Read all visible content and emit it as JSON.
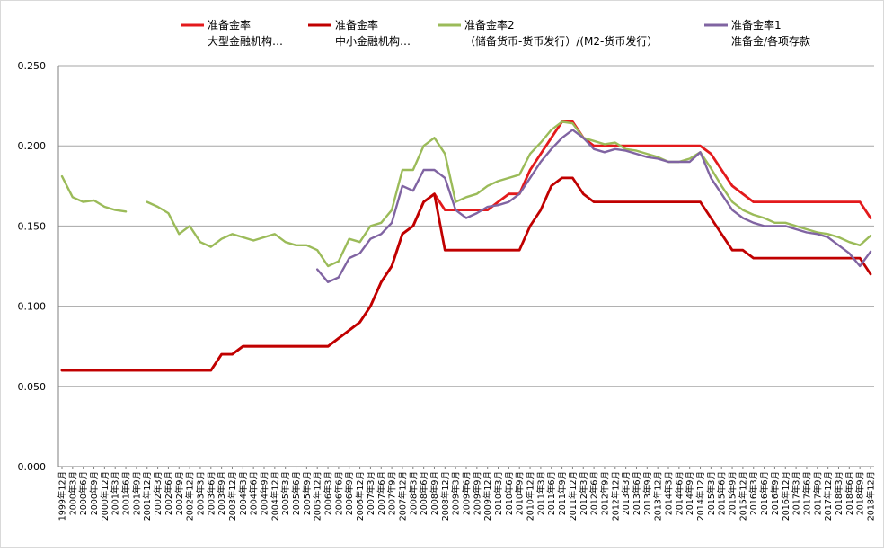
{
  "chart_data": {
    "type": "line",
    "title": "",
    "xlabel": "",
    "ylabel": "",
    "ylim": [
      0,
      0.25
    ],
    "yticks": [
      "0.000",
      "0.050",
      "0.100",
      "0.150",
      "0.200",
      "0.250"
    ],
    "grid": "horizontal",
    "legend_position": "top",
    "x_labels": [
      "1999年12月",
      "2000年3月",
      "2000年6月",
      "2000年9月",
      "2000年12月",
      "2001年3月",
      "2001年6月",
      "2001年9月",
      "2001年12月",
      "2002年3月",
      "2002年6月",
      "2002年9月",
      "2002年12月",
      "2003年3月",
      "2003年6月",
      "2003年9月",
      "2003年12月",
      "2004年3月",
      "2004年6月",
      "2004年9月",
      "2004年12月",
      "2005年3月",
      "2005年6月",
      "2005年9月",
      "2005年12月",
      "2006年3月",
      "2006年6月",
      "2006年9月",
      "2006年12月",
      "2007年3月",
      "2007年6月",
      "2007年9月",
      "2007年12月",
      "2008年3月",
      "2008年6月",
      "2008年9月",
      "2008年12月",
      "2009年3月",
      "2009年6月",
      "2009年9月",
      "2009年12月",
      "2010年3月",
      "2010年6月",
      "2010年9月",
      "2010年12月",
      "2011年3月",
      "2011年6月",
      "2011年9月",
      "2011年12月",
      "2012年3月",
      "2012年6月",
      "2012年9月",
      "2012年12月",
      "2013年3月",
      "2013年6月",
      "2013年9月",
      "2013年12月",
      "2014年3月",
      "2014年6月",
      "2014年9月",
      "2014年12月",
      "2015年3月",
      "2015年6月",
      "2015年9月",
      "2015年12月",
      "2016年3月",
      "2016年6月",
      "2016年9月",
      "2016年12月",
      "2017年3月",
      "2017年6月",
      "2017年9月",
      "2017年12月",
      "2018年3月",
      "2018年6月",
      "2018年9月",
      "2018年12月"
    ],
    "series": [
      {
        "name_line1": "准备金率",
        "name_line2": "大型金融机构…",
        "color": "#e31a1c",
        "values": [
          0.06,
          0.06,
          0.06,
          0.06,
          0.06,
          0.06,
          0.06,
          0.06,
          0.06,
          0.06,
          0.06,
          0.06,
          0.06,
          0.06,
          0.06,
          0.07,
          0.07,
          0.075,
          0.075,
          0.075,
          0.075,
          0.075,
          0.075,
          0.075,
          0.075,
          0.075,
          0.08,
          0.085,
          0.09,
          0.1,
          0.115,
          0.125,
          0.145,
          0.15,
          0.165,
          0.17,
          0.16,
          0.16,
          0.16,
          0.16,
          0.16,
          0.165,
          0.17,
          0.17,
          0.185,
          0.195,
          0.205,
          0.215,
          0.215,
          0.205,
          0.2,
          0.2,
          0.2,
          0.2,
          0.2,
          0.2,
          0.2,
          0.2,
          0.2,
          0.2,
          0.2,
          0.195,
          0.185,
          0.175,
          0.17,
          0.165,
          0.165,
          0.165,
          0.165,
          0.165,
          0.165,
          0.165,
          0.165,
          0.165,
          0.165,
          0.165,
          0.155
        ]
      },
      {
        "name_line1": "准备金率",
        "name_line2": "中小金融机构…",
        "color": "#c00000",
        "values": [
          0.06,
          0.06,
          0.06,
          0.06,
          0.06,
          0.06,
          0.06,
          0.06,
          0.06,
          0.06,
          0.06,
          0.06,
          0.06,
          0.06,
          0.06,
          0.07,
          0.07,
          0.075,
          0.075,
          0.075,
          0.075,
          0.075,
          0.075,
          0.075,
          0.075,
          0.075,
          0.08,
          0.085,
          0.09,
          0.1,
          0.115,
          0.125,
          0.145,
          0.15,
          0.165,
          0.17,
          0.135,
          0.135,
          0.135,
          0.135,
          0.135,
          0.135,
          0.135,
          0.135,
          0.15,
          0.16,
          0.175,
          0.18,
          0.18,
          0.17,
          0.165,
          0.165,
          0.165,
          0.165,
          0.165,
          0.165,
          0.165,
          0.165,
          0.165,
          0.165,
          0.165,
          0.155,
          0.145,
          0.135,
          0.135,
          0.13,
          0.13,
          0.13,
          0.13,
          0.13,
          0.13,
          0.13,
          0.13,
          0.13,
          0.13,
          0.13,
          0.12
        ]
      },
      {
        "name_line1": "准备金率2",
        "name_line2": "（储备货币-货币发行）/(M2-货币发行）",
        "color": "#9bbb59",
        "values": [
          0.181,
          0.168,
          0.165,
          0.166,
          0.162,
          0.16,
          0.159,
          null,
          0.165,
          0.162,
          0.158,
          0.145,
          0.15,
          0.14,
          0.137,
          0.142,
          0.145,
          0.143,
          0.141,
          0.143,
          0.145,
          0.14,
          0.138,
          0.138,
          0.135,
          0.125,
          0.128,
          0.142,
          0.14,
          0.15,
          0.152,
          0.16,
          0.185,
          0.185,
          0.2,
          0.205,
          0.195,
          0.165,
          0.168,
          0.17,
          0.175,
          0.178,
          0.18,
          0.182,
          0.195,
          0.202,
          0.21,
          0.215,
          0.214,
          0.205,
          0.203,
          0.201,
          0.202,
          0.198,
          0.197,
          0.195,
          0.193,
          0.19,
          0.19,
          0.192,
          0.196,
          0.186,
          0.175,
          0.165,
          0.16,
          0.157,
          0.155,
          0.152,
          0.152,
          0.15,
          0.148,
          0.146,
          0.145,
          0.143,
          0.14,
          0.138,
          0.144
        ]
      },
      {
        "name_line1": "准备金率1",
        "name_line2": "准备金/各项存款",
        "color": "#8064a2",
        "values": [
          null,
          null,
          null,
          null,
          null,
          null,
          null,
          null,
          null,
          null,
          null,
          null,
          null,
          null,
          null,
          null,
          null,
          null,
          null,
          null,
          null,
          null,
          null,
          null,
          0.123,
          0.115,
          0.118,
          0.13,
          0.133,
          0.142,
          0.145,
          0.152,
          0.175,
          0.172,
          0.185,
          0.185,
          0.18,
          0.16,
          0.155,
          0.158,
          0.162,
          0.163,
          0.165,
          0.17,
          0.18,
          0.19,
          0.198,
          0.205,
          0.21,
          0.205,
          0.198,
          0.196,
          0.198,
          0.197,
          0.195,
          0.193,
          0.192,
          0.19,
          0.19,
          0.19,
          0.196,
          0.18,
          0.17,
          0.16,
          0.155,
          0.152,
          0.15,
          0.15,
          0.15,
          0.148,
          0.146,
          0.145,
          0.143,
          0.138,
          0.133,
          0.125,
          0.134
        ]
      }
    ]
  }
}
